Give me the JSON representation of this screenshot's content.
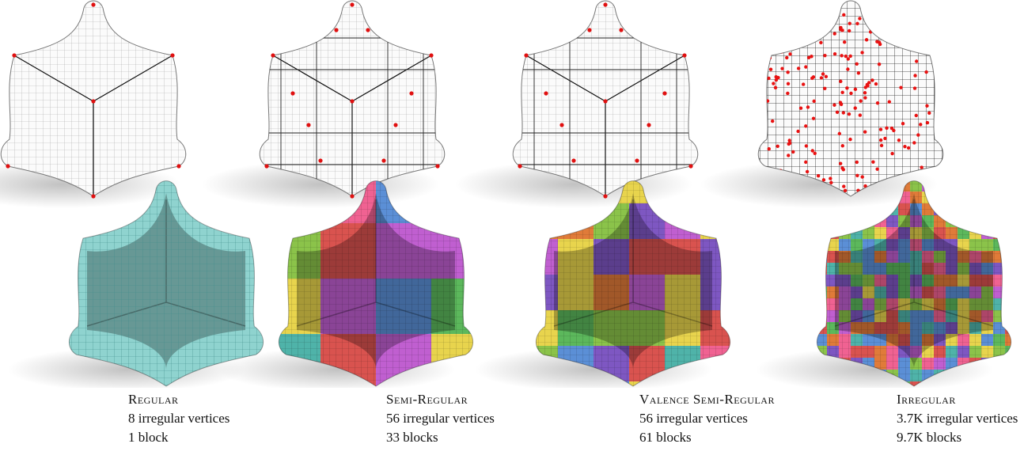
{
  "panels": [
    {
      "title": "Regular",
      "line1": "8 irregular vertices",
      "line2": "1 block"
    },
    {
      "title": "Semi-Regular",
      "line1": "56 irregular vertices",
      "line2": "33 blocks"
    },
    {
      "title": "Valence Semi-Regular",
      "line1": "56 irregular vertices",
      "line2": "61 blocks"
    },
    {
      "title": "Irregular",
      "line1": "3.7K irregular vertices",
      "line2": "9.7K blocks"
    }
  ]
}
